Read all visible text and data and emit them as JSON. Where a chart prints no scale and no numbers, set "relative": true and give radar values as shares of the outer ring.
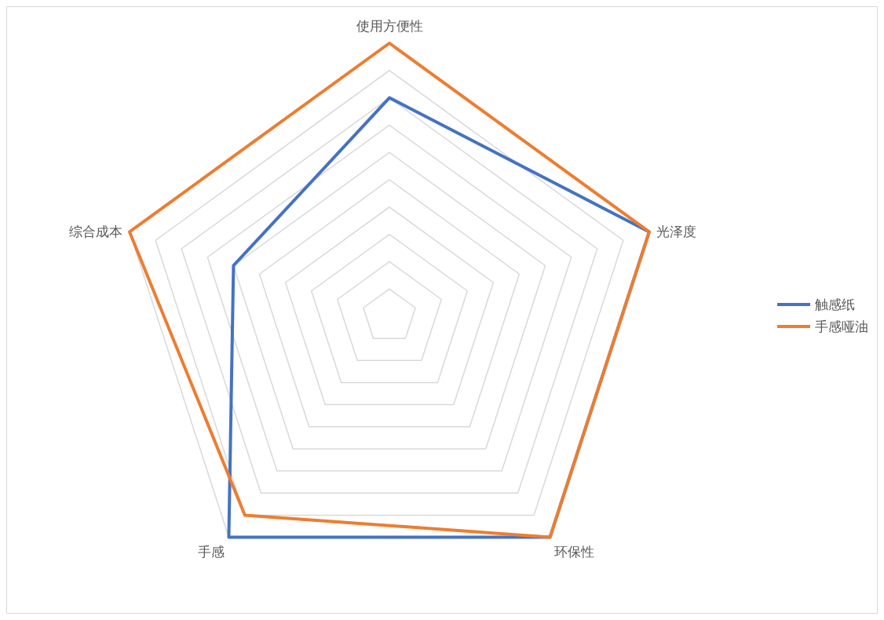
{
  "chart_data": {
    "type": "radar",
    "relative": true,
    "categories": [
      "使用方便性",
      "光泽度",
      "环保性",
      "手感",
      "综合成本"
    ],
    "series": [
      {
        "name": "触感纸",
        "color": "#4472c4",
        "values": [
          0.8,
          1,
          1,
          1,
          0.6
        ]
      },
      {
        "name": "手感哑油",
        "color": "#ed7d31",
        "values": [
          1,
          1,
          1,
          0.9,
          1
        ]
      }
    ],
    "grid": true,
    "legend": "right"
  }
}
